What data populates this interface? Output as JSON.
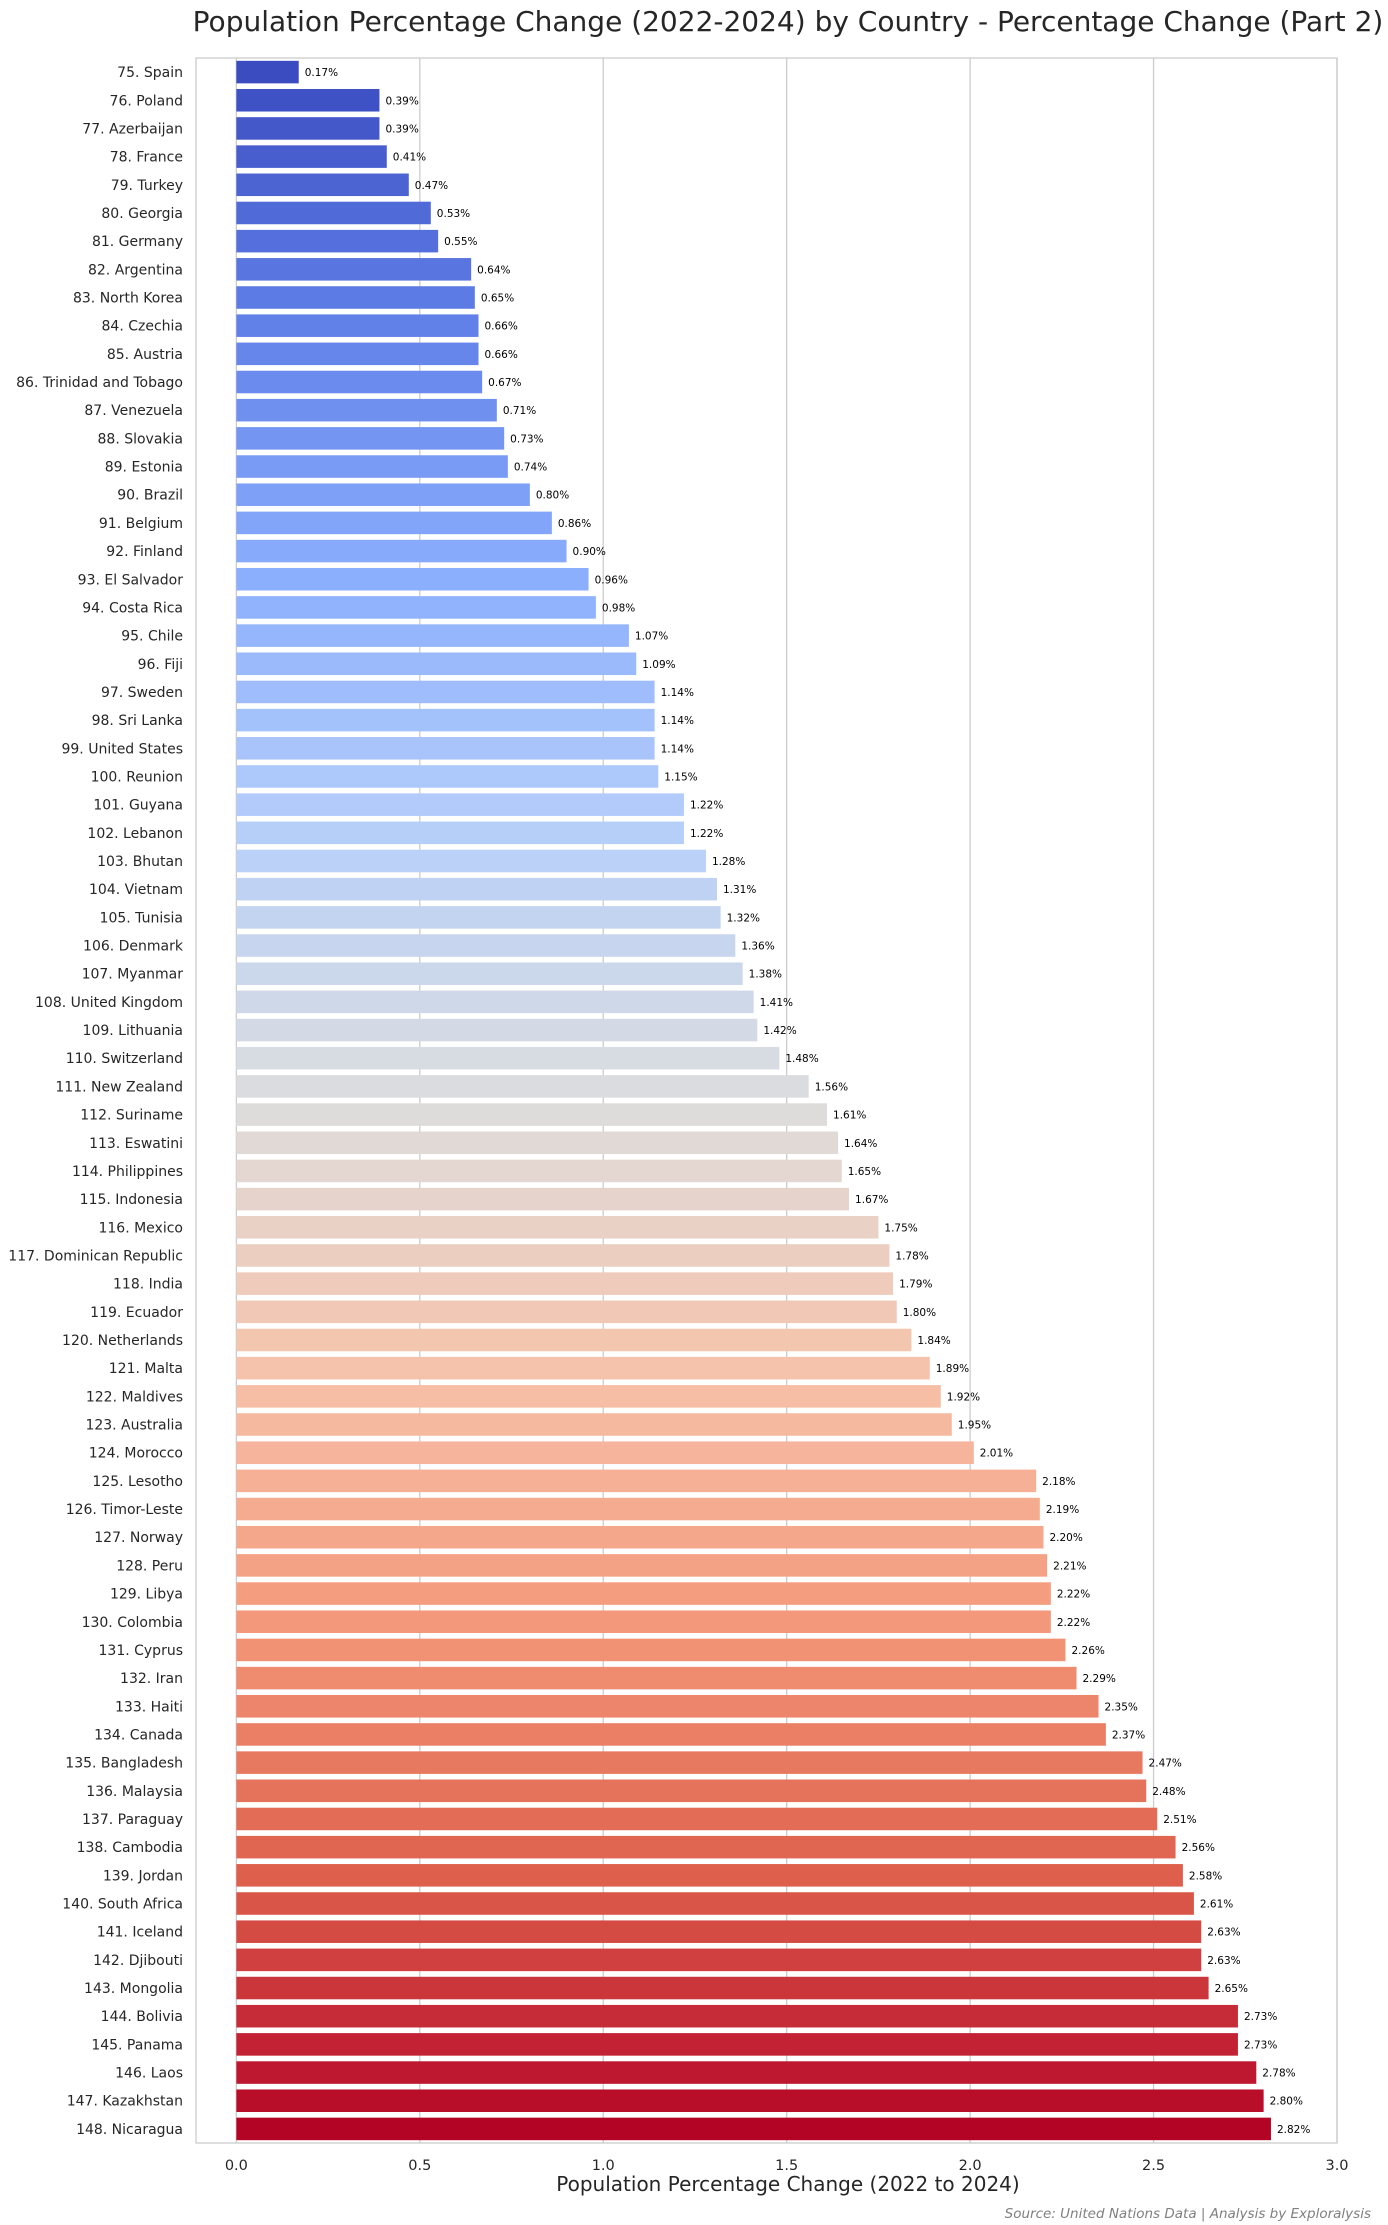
{
  "chart_data": {
    "type": "bar",
    "orientation": "horizontal",
    "title": "Population Percentage Change (2022-2024) by Country - Percentage Change (Part 2)",
    "xlabel": "Population Percentage Change (2022 to 2024)",
    "ylabel": "",
    "xlim": [
      -0.11,
      3.0
    ],
    "xticks": [
      0.0,
      0.5,
      1.0,
      1.5,
      2.0,
      2.5,
      3.0
    ],
    "xtick_labels": [
      "0.0",
      "0.5",
      "1.0",
      "1.5",
      "2.0",
      "2.5",
      "3.0"
    ],
    "grid": "vertical",
    "colormap": "coolwarm",
    "source": "Source: United Nations Data | Analysis by Exploralysis",
    "value_labels": [
      "0.17%",
      "0.39%",
      "0.39%",
      "0.41%",
      "0.47%",
      "0.53%",
      "0.55%",
      "0.64%",
      "0.65%",
      "0.66%",
      "0.66%",
      "0.67%",
      "0.71%",
      "0.73%",
      "0.74%",
      "0.80%",
      "0.86%",
      "0.90%",
      "0.96%",
      "0.98%",
      "1.07%",
      "1.09%",
      "1.14%",
      "1.14%",
      "1.14%",
      "1.15%",
      "1.22%",
      "1.22%",
      "1.28%",
      "1.31%",
      "1.32%",
      "1.36%",
      "1.38%",
      "1.41%",
      "1.42%",
      "1.48%",
      "1.56%",
      "1.61%",
      "1.64%",
      "1.65%",
      "1.67%",
      "1.75%",
      "1.78%",
      "1.79%",
      "1.80%",
      "1.84%",
      "1.89%",
      "1.92%",
      "1.95%",
      "2.01%",
      "2.18%",
      "2.19%",
      "2.20%",
      "2.21%",
      "2.22%",
      "2.22%",
      "2.26%",
      "2.29%",
      "2.35%",
      "2.37%",
      "2.47%",
      "2.48%",
      "2.51%",
      "2.56%",
      "2.58%",
      "2.61%",
      "2.63%",
      "2.63%",
      "2.65%",
      "2.73%",
      "2.73%",
      "2.78%",
      "2.80%",
      "2.82%"
    ],
    "categories": [
      "75. Spain",
      "76. Poland",
      "77. Azerbaijan",
      "78. France",
      "79. Turkey",
      "80. Georgia",
      "81. Germany",
      "82. Argentina",
      "83. North Korea",
      "84. Czechia",
      "85. Austria",
      "86. Trinidad and Tobago",
      "87. Venezuela",
      "88. Slovakia",
      "89. Estonia",
      "90. Brazil",
      "91. Belgium",
      "92. Finland",
      "93. El Salvador",
      "94. Costa Rica",
      "95. Chile",
      "96. Fiji",
      "97. Sweden",
      "98. Sri Lanka",
      "99. United States",
      "100. Reunion",
      "101. Guyana",
      "102. Lebanon",
      "103. Bhutan",
      "104. Vietnam",
      "105. Tunisia",
      "106. Denmark",
      "107. Myanmar",
      "108. United Kingdom",
      "109. Lithuania",
      "110. Switzerland",
      "111. New Zealand",
      "112. Suriname",
      "113. Eswatini",
      "114. Philippines",
      "115. Indonesia",
      "116. Mexico",
      "117. Dominican Republic",
      "118. India",
      "119. Ecuador",
      "120. Netherlands",
      "121. Malta",
      "122. Maldives",
      "123. Australia",
      "124. Morocco",
      "125. Lesotho",
      "126. Timor-Leste",
      "127. Norway",
      "128. Peru",
      "129. Libya",
      "130. Colombia",
      "131. Cyprus",
      "132. Iran",
      "133. Haiti",
      "134. Canada",
      "135. Bangladesh",
      "136. Malaysia",
      "137. Paraguay",
      "138. Cambodia",
      "139. Jordan",
      "140. South Africa",
      "141. Iceland",
      "142. Djibouti",
      "143. Mongolia",
      "144. Bolivia",
      "145. Panama",
      "146. Laos",
      "147. Kazakhstan",
      "148. Nicaragua"
    ],
    "values": [
      0.17,
      0.39,
      0.39,
      0.41,
      0.47,
      0.53,
      0.55,
      0.64,
      0.65,
      0.66,
      0.66,
      0.67,
      0.71,
      0.73,
      0.74,
      0.8,
      0.86,
      0.9,
      0.96,
      0.98,
      1.07,
      1.09,
      1.14,
      1.14,
      1.14,
      1.15,
      1.22,
      1.22,
      1.28,
      1.31,
      1.32,
      1.36,
      1.38,
      1.41,
      1.42,
      1.48,
      1.56,
      1.61,
      1.64,
      1.65,
      1.67,
      1.75,
      1.78,
      1.79,
      1.8,
      1.84,
      1.89,
      1.92,
      1.95,
      2.01,
      2.18,
      2.19,
      2.2,
      2.21,
      2.22,
      2.22,
      2.26,
      2.29,
      2.35,
      2.37,
      2.47,
      2.48,
      2.51,
      2.56,
      2.58,
      2.61,
      2.63,
      2.63,
      2.65,
      2.73,
      2.73,
      2.78,
      2.8,
      2.82
    ]
  }
}
